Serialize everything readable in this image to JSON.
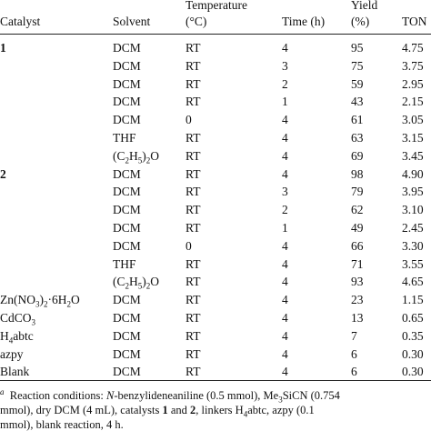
{
  "headers": {
    "catalyst": "Catalyst",
    "solvent": "Solvent",
    "temperature_line1": "Temperature",
    "temperature_line2": "(°C)",
    "time": "Time (h)",
    "yield_line1": "Yield",
    "yield_line2": "(%)",
    "ton": "TON"
  },
  "rows": [
    {
      "catalyst": "1",
      "solvent": "DCM",
      "temp": "RT",
      "time": "4",
      "yield": "95",
      "ton": "4.75"
    },
    {
      "catalyst": "",
      "solvent": "DCM",
      "temp": "RT",
      "time": "3",
      "yield": "75",
      "ton": "3.75"
    },
    {
      "catalyst": "",
      "solvent": "DCM",
      "temp": "RT",
      "time": "2",
      "yield": "59",
      "ton": "2.95"
    },
    {
      "catalyst": "",
      "solvent": "DCM",
      "temp": "RT",
      "time": "1",
      "yield": "43",
      "ton": "2.15"
    },
    {
      "catalyst": "",
      "solvent": "DCM",
      "temp": "0",
      "time": "4",
      "yield": "61",
      "ton": "3.05"
    },
    {
      "catalyst": "",
      "solvent": "THF",
      "temp": "RT",
      "time": "4",
      "yield": "63",
      "ton": "3.15"
    },
    {
      "catalyst": "",
      "solvent": "(C2H5)2O",
      "temp": "RT",
      "time": "4",
      "yield": "69",
      "ton": "3.45"
    },
    {
      "catalyst": "2",
      "solvent": "DCM",
      "temp": "RT",
      "time": "4",
      "yield": "98",
      "ton": "4.90"
    },
    {
      "catalyst": "",
      "solvent": "DCM",
      "temp": "RT",
      "time": "3",
      "yield": "79",
      "ton": "3.95"
    },
    {
      "catalyst": "",
      "solvent": "DCM",
      "temp": "RT",
      "time": "2",
      "yield": "62",
      "ton": "3.10"
    },
    {
      "catalyst": "",
      "solvent": "DCM",
      "temp": "RT",
      "time": "1",
      "yield": "49",
      "ton": "2.45"
    },
    {
      "catalyst": "",
      "solvent": "DCM",
      "temp": "0",
      "time": "4",
      "yield": "66",
      "ton": "3.30"
    },
    {
      "catalyst": "",
      "solvent": "THF",
      "temp": "RT",
      "time": "4",
      "yield": "71",
      "ton": "3.55"
    },
    {
      "catalyst": "",
      "solvent": "(C2H5)2O",
      "temp": "RT",
      "time": "4",
      "yield": "93",
      "ton": "4.65"
    },
    {
      "catalyst": "Zn(NO3)2·6H2O",
      "solvent": "DCM",
      "temp": "RT",
      "time": "4",
      "yield": "23",
      "ton": "1.15"
    },
    {
      "catalyst": "CdCO3",
      "solvent": "DCM",
      "temp": "RT",
      "time": "4",
      "yield": "13",
      "ton": "0.65"
    },
    {
      "catalyst": "H4abtc",
      "solvent": "DCM",
      "temp": "RT",
      "time": "4",
      "yield": "7",
      "ton": "0.35"
    },
    {
      "catalyst": "azpy",
      "solvent": "DCM",
      "temp": "RT",
      "time": "4",
      "yield": "6",
      "ton": "0.30"
    },
    {
      "catalyst": "Blank",
      "solvent": "DCM",
      "temp": "RT",
      "time": "4",
      "yield": "6",
      "ton": "0.30"
    }
  ],
  "footnote": {
    "mark": "a",
    "line1": "Reaction conditions: N-benzylideneaniline (0.5 mmol), Me3SiCN (0.754",
    "line2": "mmol), dry DCM (4 mL), catalysts 1 and 2, linkers H4abtc, azpy (0.1",
    "line3": "mmol), blank reaction, 4 h."
  }
}
